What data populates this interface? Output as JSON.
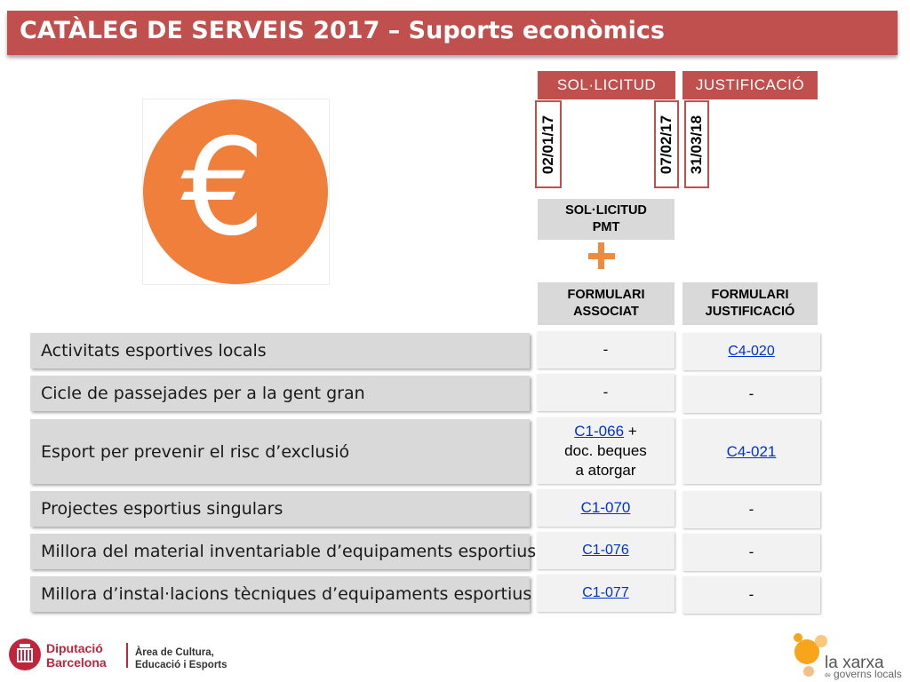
{
  "title": "CATÀLEG DE SERVEIS 2017 – Suports econòmics",
  "headers": {
    "solicitud": "SOL·LICITUD",
    "justificacio": "JUSTIFICACIÓ"
  },
  "dates": {
    "start": "02/01/17",
    "end_solicitud": "07/02/17",
    "end_justificacio": "31/03/18"
  },
  "solicitud_pmt": {
    "line1": "SOL·LICITUD",
    "line2": "PMT"
  },
  "plus_sign": "+",
  "formulari_associat": {
    "line1": "FORMULARI",
    "line2": "ASSOCIAT"
  },
  "formulari_justificacio": {
    "line1": "FORMULARI",
    "line2": "JUSTIFICACIÓ"
  },
  "icon": {
    "symbol": "€",
    "name": "euro-icon",
    "color": "#f07f3c"
  },
  "rows": [
    {
      "label": "Activitats esportives locals",
      "associat": "-",
      "justificacio": "C4-020"
    },
    {
      "label": "Cicle de passejades per a la gent gran",
      "associat": "-",
      "justificacio": "-"
    },
    {
      "label": "Esport per prevenir el risc d’exclusió",
      "associat_link": "C1-066",
      "associat_suffix": "+",
      "associat_line2": "doc. beques",
      "associat_line3": "a atorgar",
      "justificacio": "C4-021"
    },
    {
      "label": "Projectes esportius singulars",
      "associat": "C1-070",
      "justificacio": "-"
    },
    {
      "label": "Millora del material inventariable d’equipaments esportius",
      "associat": "C1-076",
      "justificacio": "-"
    },
    {
      "label": "Millora d’instal·lacions tècniques d’equipaments esportius",
      "associat": "C1-077",
      "justificacio": "-"
    }
  ],
  "footer": {
    "diputacio_line1": "Diputació",
    "diputacio_line2": "Barcelona",
    "area_line1": "Àrea de Cultura,",
    "area_line2": "Educació i Esports",
    "xarxa_line1": "la xarxa",
    "xarxa_line2_prefix": "de",
    "xarxa_line2": "governs locals"
  },
  "colors": {
    "accent": "#c0504d",
    "orange": "#f07f3c",
    "link": "#0033cc",
    "grey": "#d9d9d9"
  }
}
